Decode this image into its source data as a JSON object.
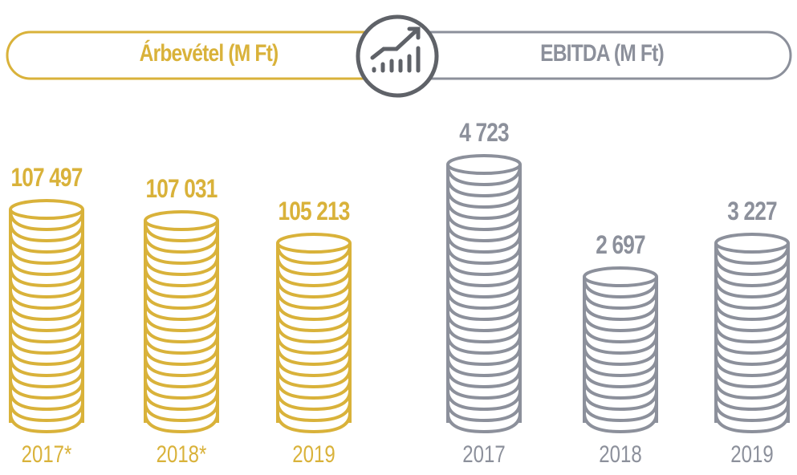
{
  "colors": {
    "revenue": "#d9b23a",
    "ebitda": "#8c909b",
    "icon": "#5f6268"
  },
  "icon": "chart-growth-icon",
  "chart_data": [
    {
      "type": "bar",
      "title": "Árbevétel (M Ft)",
      "series_color": "revenue",
      "categories": [
        "2017*",
        "2018*",
        "2019"
      ],
      "values": [
        107497,
        107031,
        105213
      ],
      "labels": [
        "107 497",
        "107 031",
        "105 213"
      ],
      "coins": [
        19,
        18,
        16
      ]
    },
    {
      "type": "bar",
      "title": "EBITDA (M Ft)",
      "series_color": "ebitda",
      "categories": [
        "2017",
        "2018",
        "2019"
      ],
      "values": [
        4723,
        2697,
        3227
      ],
      "labels": [
        "4 723",
        "2 697",
        "3 227"
      ],
      "coins": [
        23,
        13,
        16
      ]
    }
  ]
}
